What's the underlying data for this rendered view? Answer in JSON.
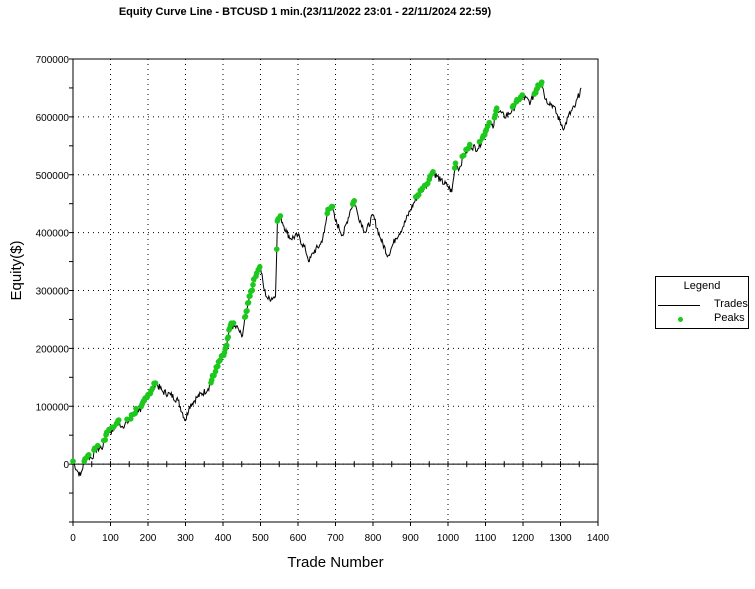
{
  "chart_data": {
    "type": "line",
    "title": "Equity Curve Line - BTCUSD 1 min.(23/11/2022 23:01 - 22/11/2024 22:59)",
    "xlabel": "Trade Number",
    "ylabel": "Equity($)",
    "xlim": [
      0,
      1400
    ],
    "ylim": [
      -100000,
      700000
    ],
    "xticks": [
      "0",
      "100",
      "200",
      "300",
      "400",
      "500",
      "600",
      "700",
      "800",
      "900",
      "1000",
      "1100",
      "1200",
      "1300",
      "1400"
    ],
    "yticks": [
      "0",
      "100000",
      "200000",
      "300000",
      "400000",
      "500000",
      "600000",
      "700000"
    ],
    "grid": true,
    "legend": {
      "title": "Legend",
      "placement": "right",
      "entries": [
        "Trades",
        "Peaks"
      ]
    },
    "colors": {
      "trades": "#000000",
      "peaks": "#1cc81c"
    },
    "series": [
      {
        "name": "Trades",
        "x": [
          0,
          10,
          20,
          30,
          40,
          50,
          60,
          80,
          90,
          110,
          120,
          130,
          150,
          160,
          170,
          180,
          190,
          200,
          210,
          220,
          240,
          260,
          280,
          300,
          310,
          330,
          360,
          380,
          390,
          400,
          410,
          420,
          440,
          450,
          460,
          470,
          480,
          490,
          500,
          510,
          520,
          540,
          545,
          555,
          570,
          580,
          600,
          620,
          630,
          640,
          660,
          670,
          680,
          690,
          700,
          720,
          740,
          750,
          760,
          780,
          800,
          820,
          840,
          850,
          860,
          880,
          900,
          920,
          940,
          960,
          980,
          1000,
          1010,
          1020,
          1030,
          1040,
          1060,
          1080,
          1100,
          1110,
          1120,
          1130,
          1150,
          1170,
          1190,
          1200,
          1220,
          1240,
          1250,
          1260,
          1280,
          1300,
          1310,
          1320,
          1340,
          1355
        ],
        "y": [
          5000,
          -10000,
          -20000,
          5000,
          15000,
          10000,
          25000,
          30000,
          55000,
          60000,
          75000,
          65000,
          75000,
          85000,
          95000,
          90000,
          110000,
          120000,
          125000,
          140000,
          125000,
          120000,
          110000,
          75000,
          100000,
          115000,
          130000,
          160000,
          175000,
          185000,
          205000,
          240000,
          235000,
          220000,
          255000,
          290000,
          310000,
          330000,
          340000,
          300000,
          285000,
          290000,
          420000,
          425000,
          400000,
          390000,
          395000,
          370000,
          350000,
          365000,
          380000,
          400000,
          440000,
          445000,
          420000,
          395000,
          440000,
          455000,
          430000,
          400000,
          430000,
          390000,
          360000,
          375000,
          390000,
          410000,
          440000,
          465000,
          480000,
          505000,
          490000,
          480000,
          470000,
          520000,
          510000,
          530000,
          550000,
          545000,
          575000,
          590000,
          580000,
          615000,
          600000,
          610000,
          630000,
          635000,
          625000,
          655000,
          660000,
          630000,
          620000,
          590000,
          580000,
          600000,
          620000,
          650000
        ]
      }
    ]
  }
}
